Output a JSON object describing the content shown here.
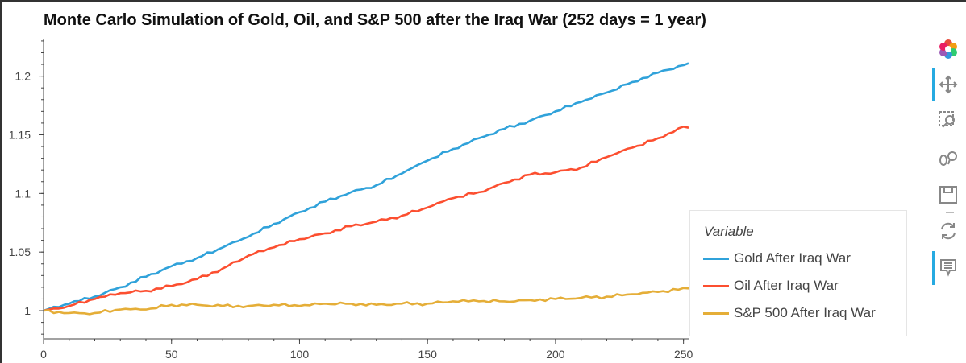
{
  "chart_data": {
    "type": "line",
    "title": "Monte Carlo Simulation of Gold, Oil, and S&P 500 after the Iraq War (252 days = 1 year)",
    "xlabel": "",
    "ylabel": "",
    "xlim": [
      0,
      252
    ],
    "ylim": [
      0.976,
      1.232
    ],
    "x_ticks": [
      0,
      50,
      100,
      150,
      200,
      250
    ],
    "x_tick_labels": [
      "0",
      "50",
      "100",
      "150",
      "200",
      "250"
    ],
    "y_ticks": [
      1,
      1.05,
      1.1,
      1.15,
      1.2
    ],
    "y_tick_labels": [
      "1",
      "1.05",
      "1.1",
      "1.15",
      "1.2"
    ],
    "grid": false,
    "legend_placement": "right",
    "legend_title": "Variable",
    "series": [
      {
        "name": "Gold After Iraq War",
        "color": "#30a2da",
        "x": [
          0,
          10,
          20,
          30,
          40,
          50,
          60,
          70,
          80,
          90,
          100,
          110,
          120,
          130,
          140,
          150,
          160,
          170,
          180,
          190,
          200,
          210,
          220,
          230,
          240,
          252
        ],
        "values": [
          1.0,
          1.006,
          1.012,
          1.02,
          1.029,
          1.038,
          1.045,
          1.054,
          1.063,
          1.074,
          1.084,
          1.093,
          1.101,
          1.107,
          1.117,
          1.128,
          1.138,
          1.147,
          1.155,
          1.162,
          1.17,
          1.178,
          1.186,
          1.195,
          1.203,
          1.211
        ]
      },
      {
        "name": "Oil After Iraq War",
        "color": "#fc4f30",
        "x": [
          0,
          10,
          20,
          30,
          40,
          50,
          60,
          70,
          80,
          90,
          100,
          110,
          120,
          130,
          140,
          150,
          160,
          170,
          180,
          190,
          200,
          210,
          220,
          230,
          240,
          250,
          252
        ],
        "values": [
          1.0,
          1.004,
          1.01,
          1.015,
          1.017,
          1.021,
          1.027,
          1.036,
          1.047,
          1.054,
          1.061,
          1.066,
          1.072,
          1.076,
          1.081,
          1.088,
          1.096,
          1.101,
          1.109,
          1.116,
          1.118,
          1.122,
          1.131,
          1.139,
          1.147,
          1.157,
          1.156
        ]
      },
      {
        "name": "S&P 500 After Iraq War",
        "color": "#e5ae38",
        "x": [
          0,
          10,
          20,
          30,
          40,
          50,
          60,
          70,
          80,
          90,
          100,
          110,
          120,
          130,
          140,
          150,
          160,
          170,
          180,
          190,
          200,
          210,
          220,
          230,
          240,
          252
        ],
        "values": [
          1.0,
          0.998,
          0.998,
          1.001,
          1.001,
          1.005,
          1.005,
          1.004,
          1.004,
          1.005,
          1.004,
          1.006,
          1.006,
          1.005,
          1.006,
          1.006,
          1.008,
          1.008,
          1.008,
          1.009,
          1.01,
          1.011,
          1.012,
          1.014,
          1.016,
          1.019
        ]
      }
    ]
  },
  "toolbar": {
    "icons": [
      "bokeh-logo-icon",
      "pan-icon",
      "box-zoom-icon",
      "wheel-zoom-icon",
      "save-icon",
      "reset-icon",
      "hover-icon"
    ]
  }
}
